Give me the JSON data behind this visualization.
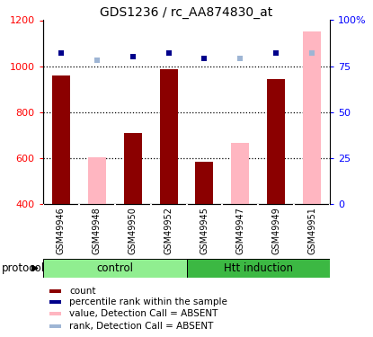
{
  "title": "GDS1236 / rc_AA874830_at",
  "samples": [
    "GSM49946",
    "GSM49948",
    "GSM49950",
    "GSM49952",
    "GSM49945",
    "GSM49947",
    "GSM49949",
    "GSM49951"
  ],
  "count_values": [
    960,
    null,
    710,
    985,
    585,
    null,
    945,
    null
  ],
  "count_absent_values": [
    null,
    605,
    null,
    null,
    null,
    665,
    null,
    1150
  ],
  "rank_values": [
    82,
    null,
    80,
    82,
    79,
    null,
    82,
    82
  ],
  "rank_absent_values": [
    null,
    78,
    null,
    null,
    null,
    79,
    null,
    82
  ],
  "ylim_left": [
    400,
    1200
  ],
  "ylim_right": [
    0,
    100
  ],
  "yticks_left": [
    400,
    600,
    800,
    1000,
    1200
  ],
  "yticks_right": [
    0,
    25,
    50,
    75,
    100
  ],
  "yticklabels_right": [
    "0",
    "25",
    "50",
    "75",
    "100%"
  ],
  "bar_width": 0.5,
  "bar_color_present": "#8B0000",
  "bar_color_absent": "#FFB6C1",
  "marker_color_present": "#00008B",
  "marker_color_absent": "#9EB5D4",
  "group_labels": [
    "control",
    "Htt induction"
  ],
  "group_colors_light": "#90EE90",
  "group_colors_dark": "#3CB843",
  "bg_color_label": "#C8C8C8",
  "protocol_label": "protocol",
  "dotted_lines": [
    600,
    800,
    1000
  ],
  "legend_items": [
    {
      "color": "#8B0000",
      "label": "count"
    },
    {
      "color": "#00008B",
      "label": "percentile rank within the sample"
    },
    {
      "color": "#FFB6C1",
      "label": "value, Detection Call = ABSENT"
    },
    {
      "color": "#9EB5D4",
      "label": "rank, Detection Call = ABSENT"
    }
  ]
}
